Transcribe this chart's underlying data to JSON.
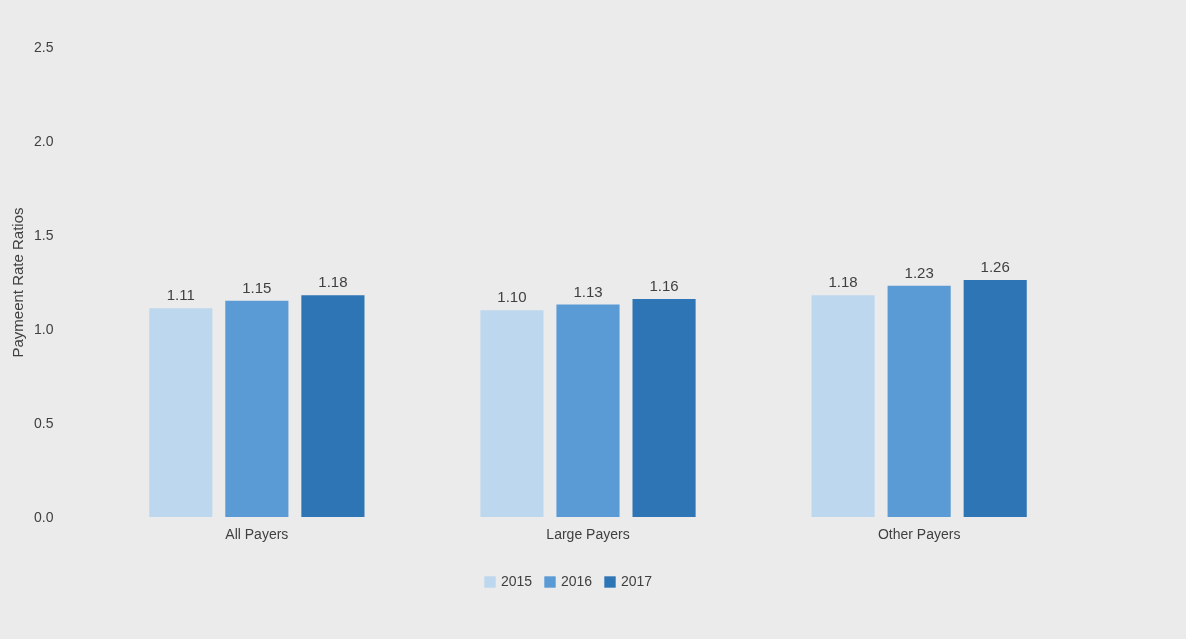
{
  "chart_data": {
    "type": "bar",
    "ylabel": "Paymeent Rate Ratios",
    "categories": [
      "All Payers",
      "Large Payers",
      "Other Payers"
    ],
    "series": [
      {
        "name": "2015",
        "color": "#bdd7ee",
        "values": [
          1.11,
          1.1,
          1.18
        ],
        "value_labels": [
          "1.11",
          "1.10",
          "1.18"
        ]
      },
      {
        "name": "2016",
        "color": "#5b9bd5",
        "values": [
          1.15,
          1.13,
          1.23
        ],
        "value_labels": [
          "1.15",
          "1.13",
          "1.23"
        ]
      },
      {
        "name": "2017",
        "color": "#2e75b6",
        "values": [
          1.18,
          1.16,
          1.26
        ],
        "value_labels": [
          "1.18",
          "1.16",
          "1.26"
        ]
      }
    ],
    "ylim": [
      0,
      2.5
    ],
    "yticks": [
      {
        "value": 0,
        "label": "0.0"
      },
      0.5,
      {
        "value": 1,
        "label": "1.0"
      },
      1.5,
      {
        "value": 2,
        "label": "2.0"
      },
      2.5
    ],
    "legend": "bottom"
  }
}
